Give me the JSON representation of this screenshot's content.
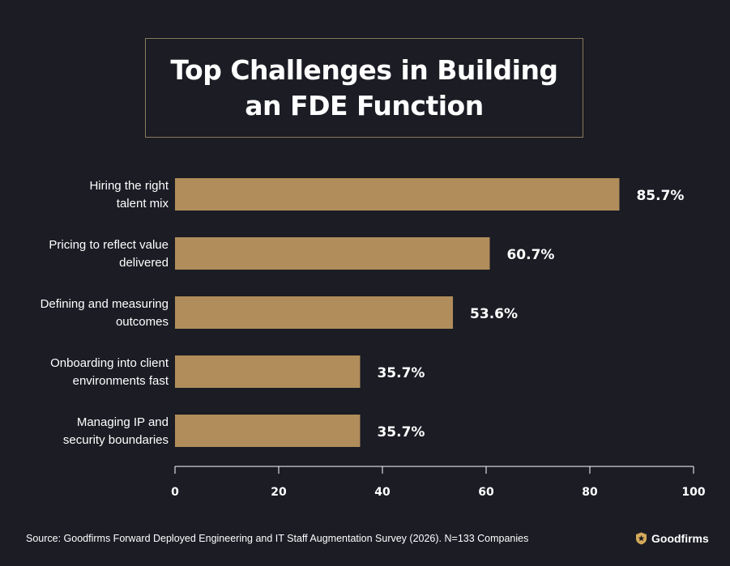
{
  "title": "Top Challenges in Building an FDE Function",
  "source": "Source: Goodfirms Forward Deployed Engineering and IT Staff Augmentation Survey (2026). N=133 Companies",
  "brand": {
    "name": "Goodfirms",
    "icon": "goodfirms-shield-star-icon"
  },
  "colors": {
    "background": "#1b1c24",
    "bar": "#b08d5a",
    "title_border": "#8a7a5c",
    "axis": "#ffffff"
  },
  "chart_data": {
    "type": "bar",
    "orientation": "horizontal",
    "categories": [
      [
        "Hiring the right",
        "talent mix"
      ],
      [
        "Pricing to reflect value",
        "delivered"
      ],
      [
        "Defining and measuring",
        "outcomes"
      ],
      [
        "Onboarding into client",
        "environments fast"
      ],
      [
        "Managing IP and",
        "security boundaries"
      ]
    ],
    "values": [
      85.7,
      60.7,
      53.6,
      35.7,
      35.7
    ],
    "value_labels": [
      "85.7%",
      "60.7%",
      "53.6%",
      "35.7%",
      "35.7%"
    ],
    "xlim": [
      0,
      100
    ],
    "xticks": [
      0,
      20,
      40,
      60,
      80,
      100
    ],
    "grid": false,
    "legend": "none"
  }
}
